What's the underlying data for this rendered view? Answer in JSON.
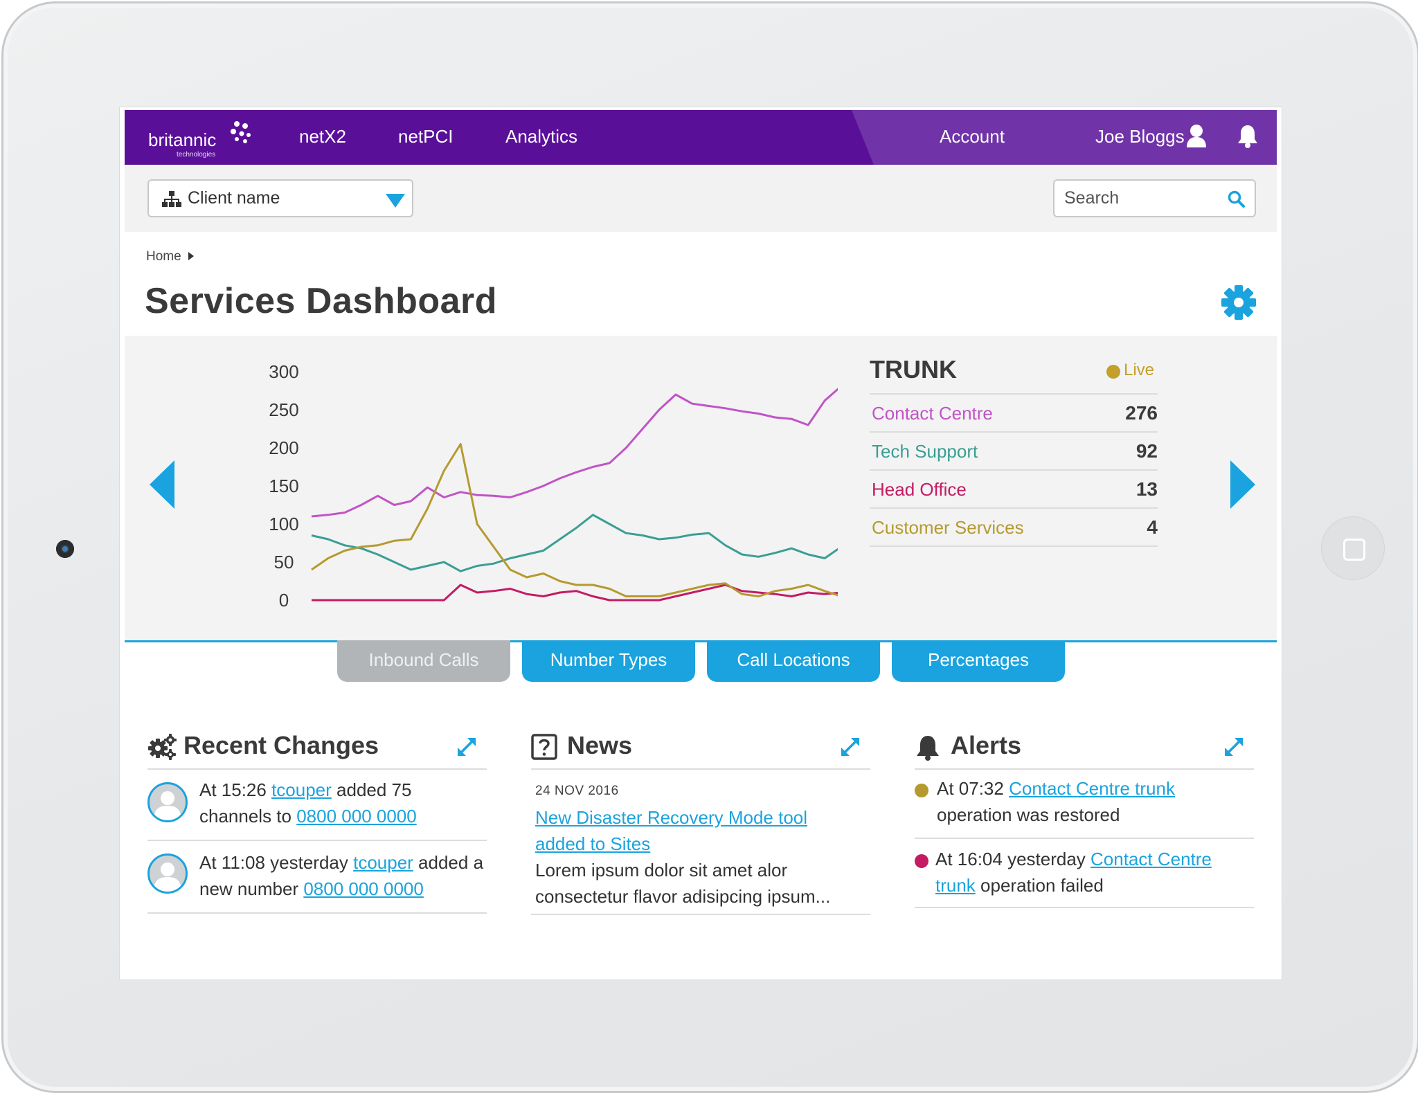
{
  "brand": {
    "name": "britannic",
    "sub": "technologies"
  },
  "nav": {
    "items": [
      "netX2",
      "netPCI",
      "Analytics"
    ],
    "account": "Account",
    "user": "Joe Bloggs"
  },
  "toolbar": {
    "client_label": "Client name",
    "search_placeholder": "Search"
  },
  "breadcrumb": {
    "home": "Home"
  },
  "page": {
    "title": "Services Dashboard"
  },
  "colors": {
    "purple": "#5a0f99",
    "accent": "#1aa3de",
    "contact_centre": "#c054c6",
    "tech_support": "#3a9e94",
    "head_office": "#c41b63",
    "customer_services": "#b59a2f"
  },
  "trunk": {
    "title": "TRUNK",
    "status": "Live",
    "rows": [
      {
        "name": "Contact Centre",
        "value": "276"
      },
      {
        "name": "Tech Support",
        "value": "92"
      },
      {
        "name": "Head Office",
        "value": "13"
      },
      {
        "name": "Customer Services",
        "value": "4"
      }
    ]
  },
  "chart_data": {
    "type": "line",
    "ylim": [
      0,
      300
    ],
    "yticks": [
      "300",
      "250",
      "200",
      "150",
      "100",
      "50",
      "0"
    ],
    "x": [
      0,
      1,
      2,
      3,
      4,
      5,
      6,
      7,
      8,
      9,
      10,
      11,
      12,
      13,
      14,
      15,
      16,
      17,
      18,
      19,
      20,
      21,
      22,
      23,
      24,
      25,
      26,
      27,
      28,
      29,
      30,
      31,
      32
    ],
    "series": [
      {
        "name": "Contact Centre",
        "values": [
          110,
          112,
          115,
          125,
          137,
          125,
          130,
          148,
          135,
          142,
          138,
          137,
          135,
          142,
          150,
          160,
          168,
          175,
          180,
          200,
          225,
          250,
          270,
          258,
          255,
          252,
          248,
          245,
          240,
          238,
          230,
          262,
          281
        ]
      },
      {
        "name": "Tech Support",
        "values": [
          85,
          80,
          72,
          68,
          60,
          50,
          40,
          45,
          50,
          38,
          45,
          48,
          55,
          60,
          65,
          80,
          95,
          112,
          100,
          88,
          85,
          80,
          82,
          86,
          88,
          72,
          60,
          57,
          62,
          68,
          60,
          55,
          70
        ]
      },
      {
        "name": "Head Office",
        "values": [
          0,
          0,
          0,
          0,
          0,
          0,
          0,
          0,
          0,
          20,
          10,
          12,
          15,
          8,
          5,
          10,
          12,
          5,
          0,
          0,
          0,
          0,
          5,
          10,
          15,
          20,
          12,
          10,
          8,
          5,
          10,
          8,
          10
        ]
      },
      {
        "name": "Customer Services",
        "values": [
          40,
          55,
          65,
          70,
          72,
          78,
          80,
          120,
          170,
          205,
          100,
          70,
          40,
          30,
          35,
          25,
          20,
          20,
          15,
          5,
          5,
          5,
          10,
          15,
          20,
          22,
          8,
          5,
          12,
          15,
          20,
          12,
          5
        ]
      }
    ]
  },
  "tabs": [
    "Inbound Calls",
    "Number Types",
    "Call Locations",
    "Percentages"
  ],
  "widgets": {
    "recent": {
      "title": "Recent Changes",
      "items": [
        {
          "pre": "At 15:26 ",
          "user": "tcouper",
          "mid": " added 75 channels to ",
          "number": "0800 000 0000"
        },
        {
          "pre": "At 11:08 yesterday ",
          "user": "tcouper",
          "mid": " added a new number ",
          "number": "0800 000 0000"
        }
      ]
    },
    "news": {
      "title": "News",
      "date": "24 NOV 2016",
      "headline": "New Disaster Recovery Mode tool added to Sites",
      "body": "Lorem ipsum dolor sit amet alor consectetur flavor adisipcing ipsum..."
    },
    "alerts": {
      "title": "Alerts",
      "items": [
        {
          "pre": "At 07:32 ",
          "link": "Contact Centre trunk",
          "post": " operation was restored",
          "color": "#b59a2f"
        },
        {
          "pre": "At 16:04 yesterday ",
          "link": "Contact Centre trunk",
          "post": " operation failed",
          "color": "#c41b63"
        }
      ]
    }
  }
}
